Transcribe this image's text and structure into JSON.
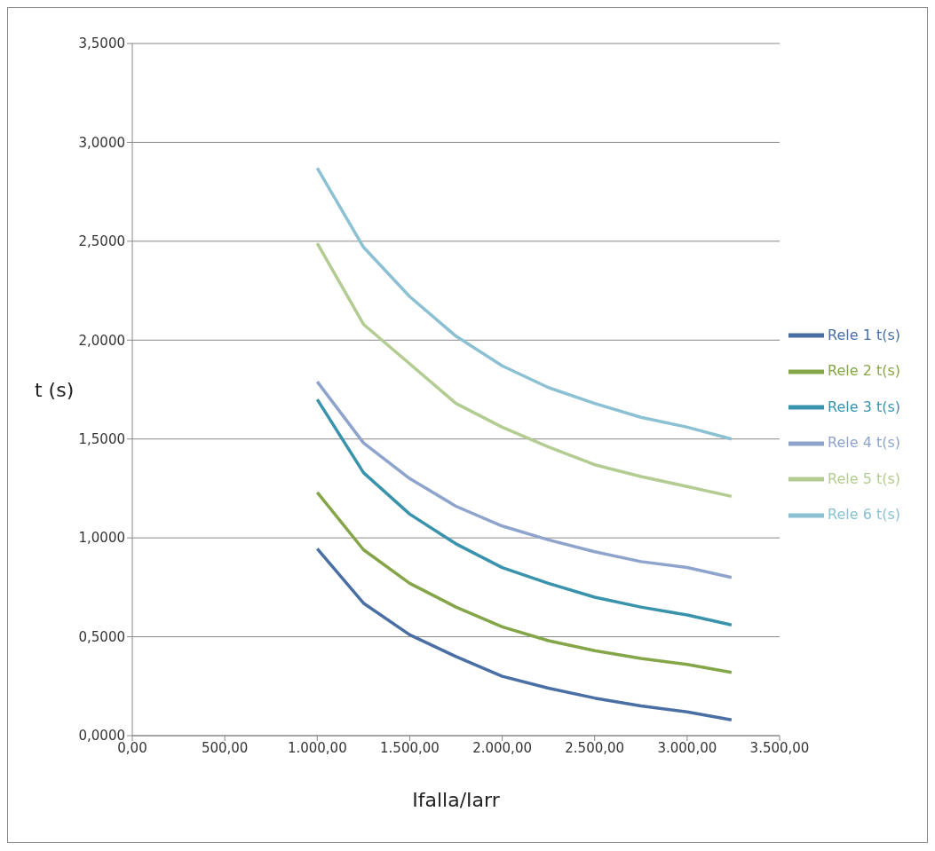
{
  "chart_data": {
    "type": "line",
    "xlabel": "Ifalla/Iarr",
    "ylabel": "t (s)",
    "x": [
      1000,
      1250,
      1500,
      1750,
      2000,
      2250,
      2500,
      2750,
      3000,
      3240
    ],
    "series": [
      {
        "name": "Rele 1 t(s)",
        "color": "#4a6fa5",
        "values": [
          0.945,
          0.67,
          0.51,
          0.4,
          0.3,
          0.24,
          0.19,
          0.15,
          0.12,
          0.08
        ]
      },
      {
        "name": "Rele 2 t(s)",
        "color": "#84a548",
        "values": [
          1.23,
          0.94,
          0.77,
          0.65,
          0.55,
          0.48,
          0.43,
          0.39,
          0.36,
          0.32
        ]
      },
      {
        "name": "Rele 3 t(s)",
        "color": "#3a93ac",
        "values": [
          1.7,
          1.33,
          1.12,
          0.97,
          0.85,
          0.77,
          0.7,
          0.65,
          0.61,
          0.56
        ]
      },
      {
        "name": "Rele 4 t(s)",
        "color": "#8fa4cc",
        "values": [
          1.79,
          1.48,
          1.3,
          1.16,
          1.06,
          0.99,
          0.93,
          0.88,
          0.85,
          0.8
        ]
      },
      {
        "name": "Rele 5 t(s)",
        "color": "#b3cc91",
        "values": [
          2.49,
          2.08,
          1.88,
          1.68,
          1.56,
          1.46,
          1.37,
          1.31,
          1.26,
          1.21
        ]
      },
      {
        "name": "Rele 6 t(s)",
        "color": "#8cc0d3",
        "values": [
          2.87,
          2.47,
          2.22,
          2.02,
          1.87,
          1.76,
          1.68,
          1.61,
          1.56,
          1.5
        ]
      }
    ],
    "xlim": [
      0,
      3500
    ],
    "xticks": [
      {
        "value": 0,
        "label": "0,00"
      },
      {
        "value": 500,
        "label": "500,00"
      },
      {
        "value": 1000,
        "label": "1.000,00"
      },
      {
        "value": 1500,
        "label": "1.500,00"
      },
      {
        "value": 2000,
        "label": "2.000,00"
      },
      {
        "value": 2500,
        "label": "2.500,00"
      },
      {
        "value": 3000,
        "label": "3.000,00"
      },
      {
        "value": 3500,
        "label": "3.500,00"
      }
    ],
    "ylim": [
      0,
      3.5
    ],
    "yticks": [
      {
        "value": 0,
        "label": "0,0000"
      },
      {
        "value": 0.5,
        "label": "0,5000"
      },
      {
        "value": 1,
        "label": "1,0000"
      },
      {
        "value": 1.5,
        "label": "1,5000"
      },
      {
        "value": 2,
        "label": "2,0000"
      },
      {
        "value": 2.5,
        "label": "2,5000"
      },
      {
        "value": 3,
        "label": "3,0000"
      },
      {
        "value": 3.5,
        "label": "3,5000"
      }
    ],
    "grid": "y",
    "legend": "right",
    "marker": "none",
    "line_style": "solid"
  }
}
